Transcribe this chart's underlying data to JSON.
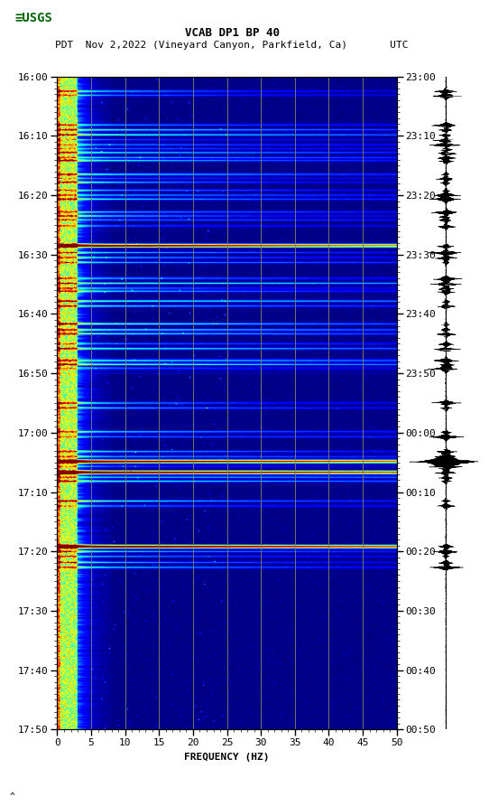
{
  "title_line1": "VCAB DP1 BP 40",
  "title_line2": "PDT  Nov 2,2022 (Vineyard Canyon, Parkfield, Ca)       UTC",
  "xlabel": "FREQUENCY (HZ)",
  "left_yticks": [
    "16:00",
    "16:10",
    "16:20",
    "16:30",
    "16:40",
    "16:50",
    "17:00",
    "17:10",
    "17:20",
    "17:30",
    "17:40",
    "17:50"
  ],
  "right_yticks": [
    "23:00",
    "23:10",
    "23:20",
    "23:30",
    "23:40",
    "23:50",
    "00:00",
    "00:10",
    "00:20",
    "00:30",
    "00:40",
    "00:50"
  ],
  "xmin": 0,
  "xmax": 50,
  "xtick_major": [
    0,
    5,
    10,
    15,
    20,
    25,
    30,
    35,
    40,
    45,
    50
  ],
  "num_time_steps": 660,
  "num_freq_bins": 300,
  "background_color": "#ffffff",
  "spectrogram_cmap": "jet",
  "vgrid_color": "#808060",
  "vgrid_positions": [
    5,
    10,
    15,
    20,
    25,
    30,
    35,
    40,
    45
  ],
  "noise_seed": 7,
  "figsize": [
    5.52,
    8.92
  ],
  "dpi": 100
}
